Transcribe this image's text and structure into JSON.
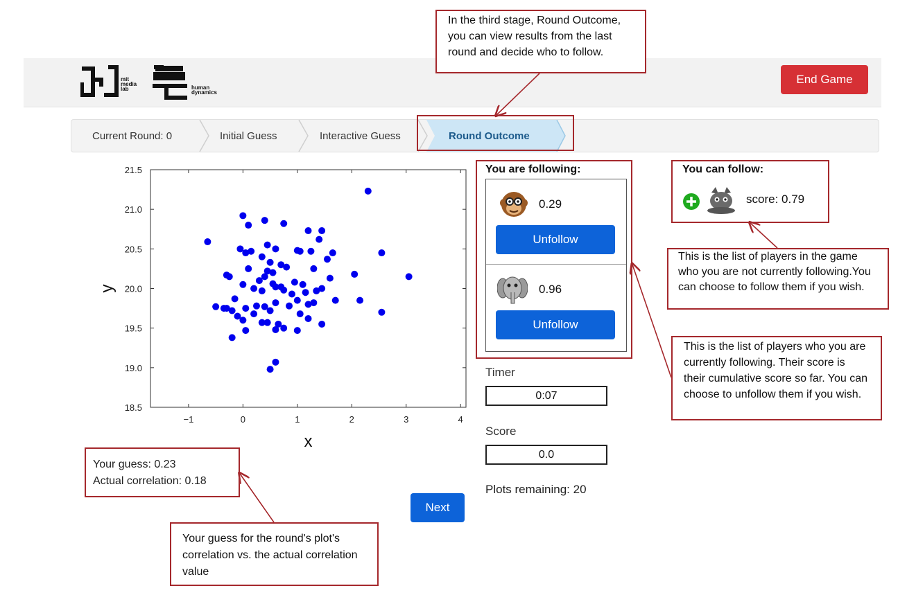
{
  "header": {
    "logo_left_text": "mit\nmedia\nlab",
    "logo_right_text": "human\ndynamics",
    "end_game_label": "End Game"
  },
  "breadcrumb": {
    "items": [
      "Current Round: 0",
      "Initial Guess",
      "Interactive Guess",
      "Round Outcome"
    ],
    "active_index": 3
  },
  "annotations": {
    "round_outcome": "In the third stage, Round Outcome, you can view results from the last round and decide who to follow.",
    "can_follow": "This is the list of players in the game who you are not currently following.You can choose to follow them if you wish.",
    "following": "This is the list of players who you are currently following. Their score is their cumulative score so far. You can choose to unfollow them if you wish.",
    "guess": "Your guess for the round's plot's correlation  vs. the actual correlation value"
  },
  "following": {
    "title": "You are following:",
    "players": [
      {
        "avatar": "monkey-icon",
        "score": "0.29",
        "button": "Unfollow"
      },
      {
        "avatar": "elephant-icon",
        "score": "0.96",
        "button": "Unfollow"
      }
    ]
  },
  "can_follow": {
    "title": "You can follow:",
    "players": [
      {
        "avatar": "cat-icon",
        "action_icon": "add-icon",
        "score_text": "score: 0.79"
      }
    ]
  },
  "timer": {
    "label": "Timer",
    "value": "0:07"
  },
  "score": {
    "label": "Score",
    "value": "0.0"
  },
  "plots_remaining": "Plots remaining: 20",
  "guess_result": {
    "your_guess": "Your guess: 0.23",
    "actual": "Actual correlation: 0.18"
  },
  "next_label": "Next",
  "colors": {
    "accent": "#0d63d9",
    "danger": "#d63035",
    "annotation": "#a5282c",
    "points": "#0000ee"
  },
  "chart_data": {
    "type": "scatter",
    "xlabel": "x",
    "ylabel": "y",
    "xlim": [
      -1.7,
      4.1
    ],
    "ylim": [
      18.5,
      21.5
    ],
    "xticks": [
      -1,
      0,
      1,
      2,
      3,
      4
    ],
    "yticks": [
      18.5,
      19.0,
      19.5,
      20.0,
      20.5,
      21.0,
      21.5
    ],
    "x": [
      2.3,
      0.0,
      0.4,
      0.1,
      0.75,
      1.2,
      1.45,
      1.4,
      -0.65,
      0.6,
      0.45,
      -0.05,
      0.15,
      0.05,
      1.65,
      1.0,
      1.05,
      1.25,
      2.55,
      0.35,
      0.5,
      0.7,
      1.55,
      0.8,
      -0.3,
      0.1,
      1.3,
      0.45,
      0.55,
      1.6,
      2.05,
      3.05,
      -0.25,
      0.4,
      0.3,
      0.55,
      0.0,
      0.95,
      1.1,
      0.7,
      1.45,
      0.2,
      0.35,
      0.6,
      0.75,
      0.9,
      1.15,
      1.35,
      1.7,
      -0.5,
      -0.15,
      -0.3,
      -0.2,
      0.05,
      0.25,
      0.4,
      0.5,
      0.6,
      0.85,
      1.0,
      1.2,
      1.3,
      2.15,
      2.55,
      -0.1,
      -0.35,
      0.0,
      0.2,
      0.45,
      0.65,
      1.0,
      1.2,
      1.45,
      -0.2,
      0.05,
      0.35,
      0.6,
      0.75,
      1.05,
      0.6,
      0.5
    ],
    "y": [
      21.23,
      20.92,
      20.86,
      20.8,
      20.82,
      20.73,
      20.73,
      20.62,
      20.59,
      20.5,
      20.55,
      20.5,
      20.47,
      20.45,
      20.45,
      20.48,
      20.47,
      20.47,
      20.45,
      20.4,
      20.33,
      20.3,
      20.37,
      20.27,
      20.17,
      20.25,
      20.25,
      20.22,
      20.2,
      20.13,
      20.18,
      20.15,
      20.15,
      20.15,
      20.1,
      20.06,
      20.05,
      20.08,
      20.05,
      20.02,
      20.0,
      20.0,
      19.97,
      20.02,
      19.98,
      19.93,
      19.95,
      19.97,
      19.85,
      19.77,
      19.87,
      19.75,
      19.72,
      19.75,
      19.78,
      19.77,
      19.72,
      19.82,
      19.78,
      19.85,
      19.8,
      19.82,
      19.85,
      19.7,
      19.65,
      19.75,
      19.6,
      19.68,
      19.57,
      19.55,
      19.47,
      19.62,
      19.55,
      19.38,
      19.47,
      19.57,
      19.48,
      19.5,
      19.68,
      19.07,
      18.98
    ]
  }
}
